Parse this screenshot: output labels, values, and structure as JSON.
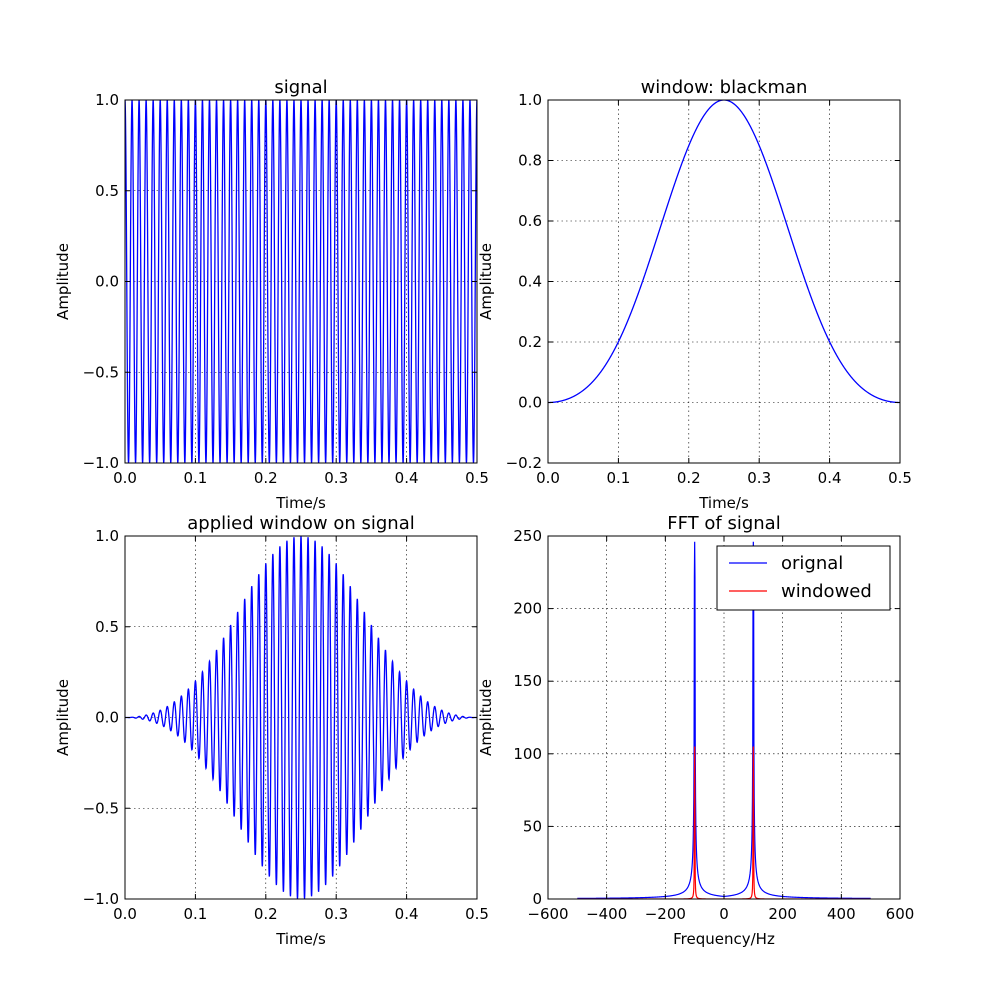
{
  "chart_data": [
    {
      "id": "signal",
      "type": "line",
      "title": "signal",
      "xlabel": "Time/s",
      "ylabel": "Amplitude",
      "xlim": [
        0.0,
        0.5
      ],
      "ylim": [
        -1.0,
        1.0
      ],
      "xticks": [
        "0.0",
        "0.1",
        "0.2",
        "0.3",
        "0.4",
        "0.5"
      ],
      "yticks": [
        "−1.0",
        "−0.5",
        "0.0",
        "0.5",
        "1.0"
      ],
      "grid": true,
      "series": [
        {
          "color": "#0000ff",
          "function": "cos(2*pi*f*t)",
          "frequency_hz": 100,
          "t_range": [
            0.0,
            0.5
          ],
          "samples": 1000
        }
      ]
    },
    {
      "id": "window",
      "type": "line",
      "title": "window: blackman",
      "xlabel": "Time/s",
      "ylabel": "Amplitude",
      "xlim": [
        0.0,
        0.5
      ],
      "ylim": [
        -0.2,
        1.0
      ],
      "xticks": [
        "0.0",
        "0.1",
        "0.2",
        "0.3",
        "0.4",
        "0.5"
      ],
      "yticks": [
        "−0.2",
        "0.0",
        "0.2",
        "0.4",
        "0.6",
        "0.8",
        "1.0"
      ],
      "grid": true,
      "series": [
        {
          "color": "#0000ff",
          "function": "blackman window",
          "t_range": [
            0.0,
            0.5
          ],
          "peak": [
            0.25,
            1.0
          ],
          "endpoints": 0.0
        }
      ]
    },
    {
      "id": "applied",
      "type": "line",
      "title": "applied window on signal",
      "xlabel": "Time/s",
      "ylabel": "Amplitude",
      "xlim": [
        0.0,
        0.5
      ],
      "ylim": [
        -1.0,
        1.0
      ],
      "xticks": [
        "0.0",
        "0.1",
        "0.2",
        "0.3",
        "0.4",
        "0.5"
      ],
      "yticks": [
        "−1.0",
        "−0.5",
        "0.0",
        "0.5",
        "1.0"
      ],
      "grid": true,
      "series": [
        {
          "color": "#0000ff",
          "function": "signal * blackman window",
          "frequency_hz": 100,
          "t_range": [
            0.0,
            0.5
          ]
        }
      ]
    },
    {
      "id": "fft",
      "type": "line",
      "title": "FFT of signal",
      "xlabel": "Frequency/Hz",
      "ylabel": "Amplitude",
      "xlim": [
        -600,
        600
      ],
      "ylim": [
        0,
        250
      ],
      "xticks": [
        "−600",
        "−400",
        "−200",
        "0",
        "200",
        "400",
        "600"
      ],
      "yticks": [
        "0",
        "50",
        "100",
        "150",
        "200",
        "250"
      ],
      "grid": true,
      "legend": "top-right",
      "freq_range": [
        -500,
        500
      ],
      "series": [
        {
          "name": "orignal",
          "color": "#0000ff",
          "peaks": [
            {
              "x": -100,
              "y": 246
            },
            {
              "x": 100,
              "y": 246
            }
          ]
        },
        {
          "name": "windowed",
          "color": "#ff0000",
          "peaks": [
            {
              "x": -100,
              "y": 105
            },
            {
              "x": 100,
              "y": 105
            }
          ]
        }
      ]
    }
  ]
}
